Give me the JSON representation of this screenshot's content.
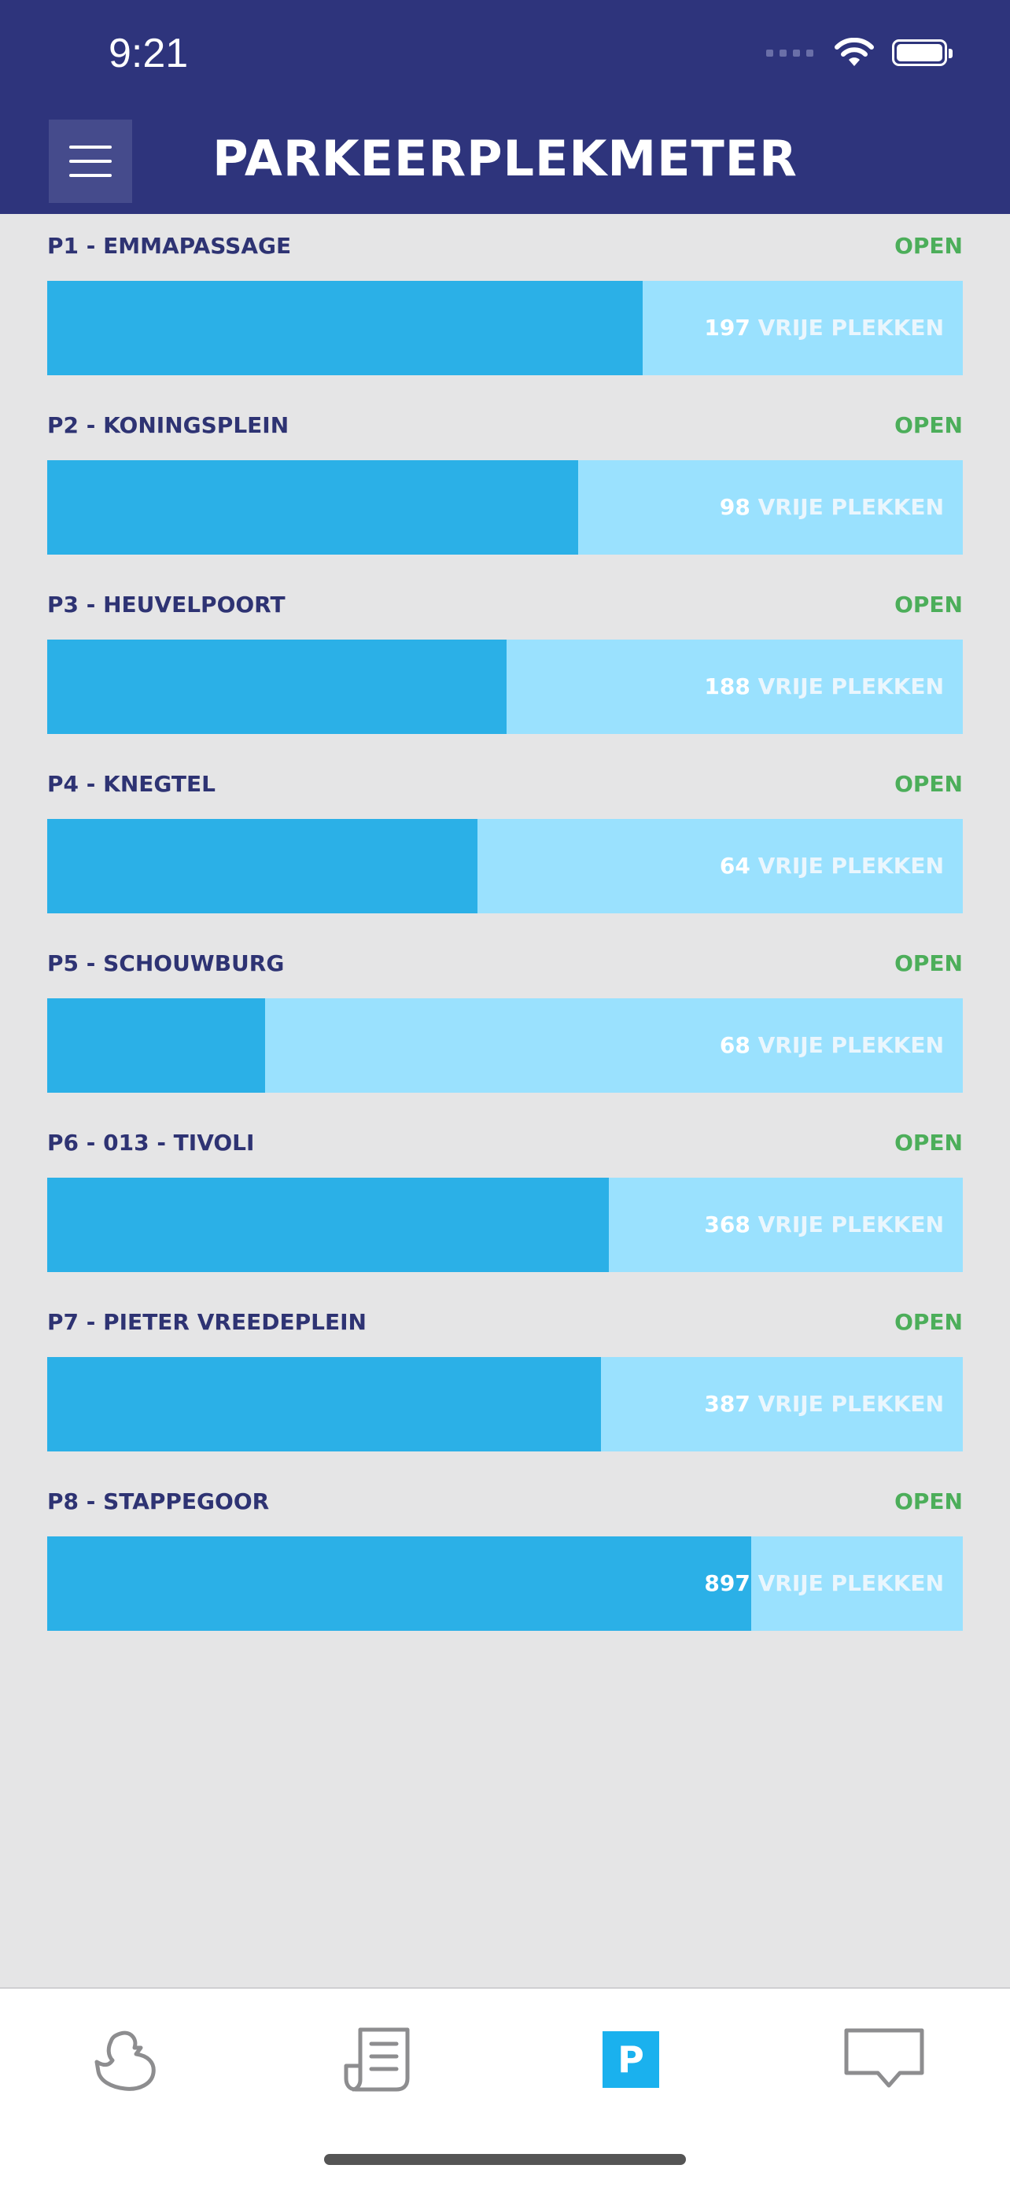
{
  "status_bar": {
    "time": "9:21"
  },
  "header": {
    "title": "PARKEERPLEKMETER"
  },
  "garages": [
    {
      "name": "P1 - EMMAPASSAGE",
      "status": "OPEN",
      "free": "197",
      "free_label": "VRIJE PLEKKEN",
      "occupancy": 0.65
    },
    {
      "name": "P2 - KONINGSPLEIN",
      "status": "OPEN",
      "free": "98",
      "free_label": "VRIJE PLEKKEN",
      "occupancy": 0.58
    },
    {
      "name": "P3 - HEUVELPOORT",
      "status": "OPEN",
      "free": "188",
      "free_label": "VRIJE PLEKKEN",
      "occupancy": 0.502
    },
    {
      "name": "P4 - KNEGTEL",
      "status": "OPEN",
      "free": "64",
      "free_label": "VRIJE PLEKKEN",
      "occupancy": 0.47
    },
    {
      "name": "P5 - SCHOUWBURG",
      "status": "OPEN",
      "free": "68",
      "free_label": "VRIJE PLEKKEN",
      "occupancy": 0.238
    },
    {
      "name": "P6 - 013 - TIVOLI",
      "status": "OPEN",
      "free": "368",
      "free_label": "VRIJE PLEKKEN",
      "occupancy": 0.613
    },
    {
      "name": "P7 - PIETER VREEDEPLEIN",
      "status": "OPEN",
      "free": "387",
      "free_label": "VRIJE PLEKKEN",
      "occupancy": 0.605
    },
    {
      "name": "P8 - STAPPEGOOR",
      "status": "OPEN",
      "free": "897",
      "free_label": "VRIJE PLEKKEN",
      "occupancy": 0.769
    }
  ],
  "tabbar": {
    "tabs": [
      {
        "icon": "duck-icon"
      },
      {
        "icon": "news-icon"
      },
      {
        "icon": "parking-icon",
        "glyph": "P",
        "active": true
      },
      {
        "icon": "chat-icon"
      }
    ]
  },
  "colors": {
    "header_bg": "#2e347c",
    "bar_fill": "#2bb0e7",
    "bar_track": "#9ae1fe",
    "status_open": "#4cae5a",
    "garage_name": "#2e3373"
  }
}
